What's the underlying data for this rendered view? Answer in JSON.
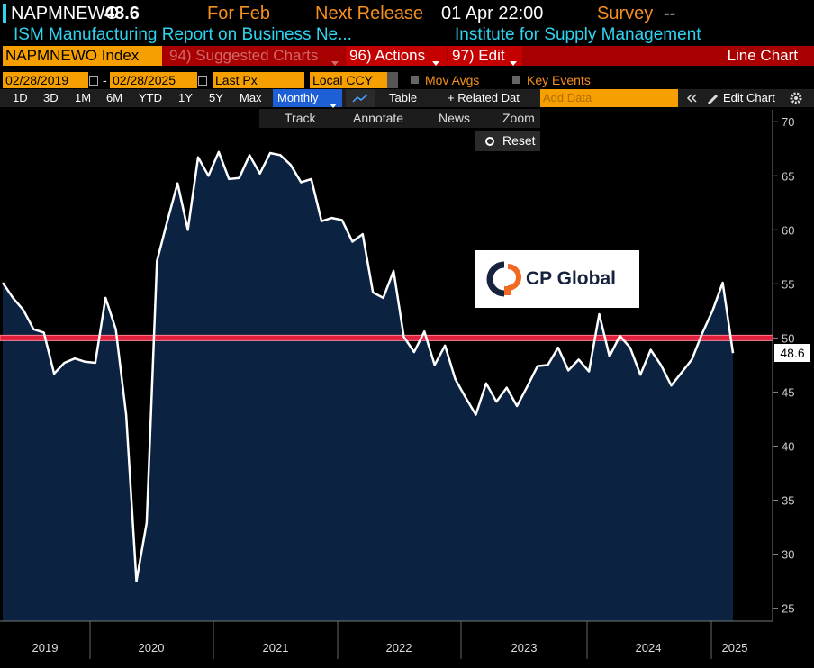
{
  "header": {
    "ticker": "NAPMNEWO",
    "for_label": "For Feb",
    "next_release_label": "Next Release",
    "next_release": "01 Apr 22:00",
    "survey_label": "Survey",
    "survey": "--",
    "description": "ISM Manufacturing Report on Business Ne...",
    "source": "Institute for Supply Management"
  },
  "menu": {
    "security": "NAPMNEWO Index",
    "suggested": "94) Suggested Charts",
    "actions": "96) Actions",
    "edit": "97) Edit",
    "chart_type": "Line Chart"
  },
  "controls": {
    "start_date": "02/28/2019",
    "separator": "-",
    "end_date": "02/28/2025",
    "price": "Last Px",
    "currency": "Local CCY",
    "mov_avgs": "Mov Avgs",
    "key_events": "Key Events"
  },
  "toolbar": {
    "periods": [
      "1D",
      "3D",
      "1M",
      "6M",
      "YTD",
      "1Y",
      "5Y",
      "Max"
    ],
    "frequency": "Monthly",
    "table": "Table",
    "related": "+ Related Dat",
    "add_data": "Add Data",
    "edit_chart": "Edit Chart"
  },
  "tools": [
    "Track",
    "Annotate",
    "News",
    "Zoom"
  ],
  "reset": "Reset",
  "logo": "CP Global",
  "chart_data": {
    "type": "line",
    "color": "#ffffff",
    "fill": "#0b2240",
    "values": [
      55.1,
      53.7,
      52.6,
      50.8,
      50.5,
      46.7,
      47.7,
      48.1,
      47.8,
      47.7,
      53.7,
      50.8,
      42.9,
      27.5,
      32.9,
      57.1,
      60.8,
      64.3,
      60.0,
      66.7,
      65.0,
      67.2,
      64.7,
      64.8,
      66.9,
      65.2,
      67.1,
      66.9,
      66.0,
      64.4,
      64.7,
      60.8,
      61.1,
      60.9,
      58.9,
      59.6,
      54.2,
      53.7,
      56.2,
      50.1,
      48.7,
      50.6,
      47.5,
      49.3,
      46.2,
      44.5,
      42.9,
      45.8,
      44.1,
      45.4,
      43.7,
      45.5,
      47.4,
      47.5,
      49.1,
      47.0,
      48.0,
      46.9,
      52.2,
      48.3,
      50.2,
      49.1,
      46.6,
      48.9,
      47.5,
      45.6,
      46.8,
      48.0,
      50.4,
      52.5,
      55.1,
      48.6
    ],
    "x_labels": [
      "2019",
      "2020",
      "2021",
      "2022",
      "2023",
      "2024",
      "2025"
    ],
    "hline": 50,
    "hline_color": "#e0203c",
    "ylim": [
      23.8,
      71.1
    ],
    "yticks": [
      25,
      30,
      35,
      40,
      45,
      50,
      55,
      60,
      65,
      70
    ]
  }
}
